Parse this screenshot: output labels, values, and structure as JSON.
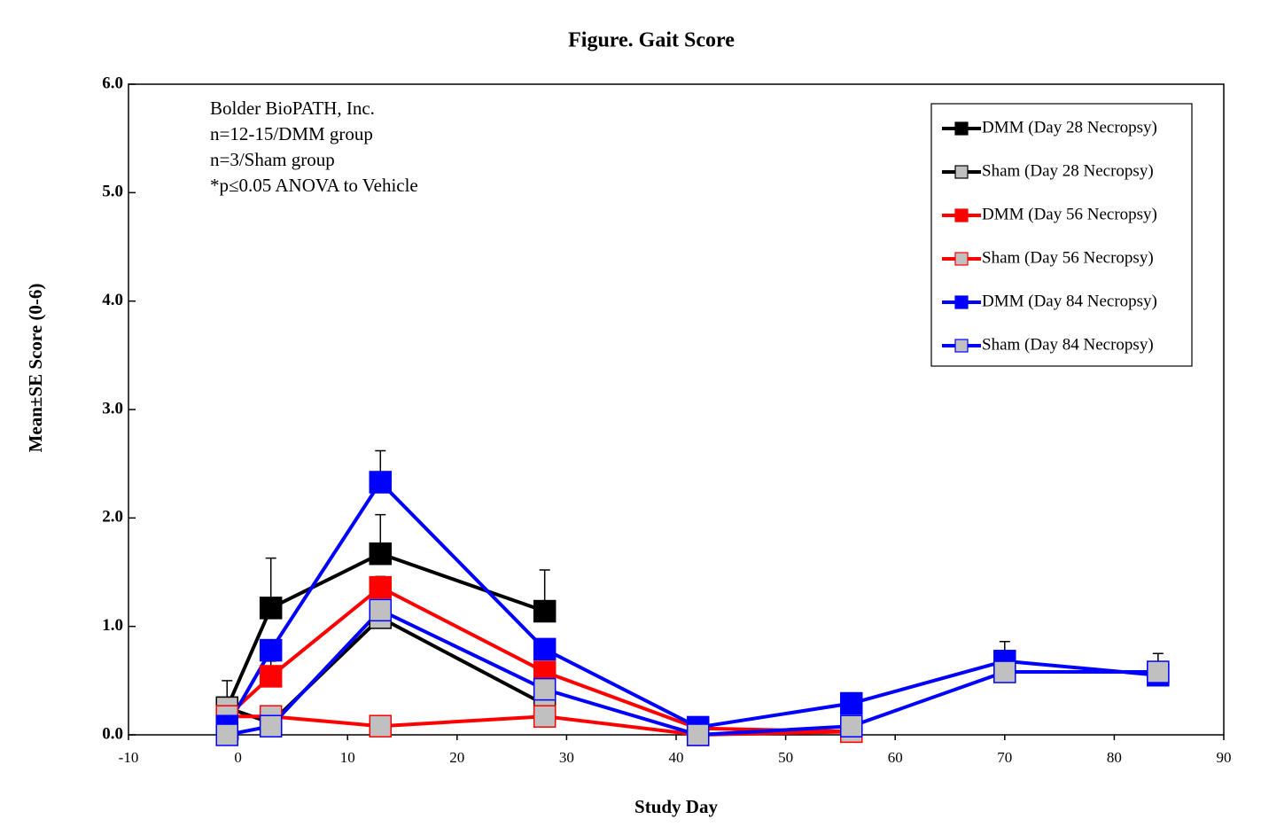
{
  "chart_data": {
    "type": "line",
    "title": "Figure. Gait Score",
    "x_label": "Study Day",
    "y_label": "Mean±SE Score (0-6)",
    "annotations": [
      "Bolder BioPATH, Inc.",
      "n=12-15/DMM group",
      "n=3/Sham group",
      "*p≤0.05 ANOVA to Vehicle"
    ],
    "xlim": [
      -10,
      90
    ],
    "xticks": [
      -10,
      0,
      10,
      20,
      30,
      40,
      50,
      60,
      70,
      80,
      90
    ],
    "ylim": [
      0,
      6
    ],
    "yticks": [
      {
        "value": 0,
        "label": "0.0"
      },
      {
        "value": 1,
        "label": "1.0"
      },
      {
        "value": 2,
        "label": "2.0"
      },
      {
        "value": 3,
        "label": "3.0"
      },
      {
        "value": 4,
        "label": "4.0"
      },
      {
        "value": 5,
        "label": "5.0"
      },
      {
        "value": 6,
        "label": "6.0"
      }
    ],
    "legend": "top-right",
    "series": [
      {
        "name": "DMM (Day 28 Necropsy)",
        "color": "#000000",
        "marker_color": "#000000",
        "x": [
          -1,
          3,
          13,
          28
        ],
        "values": [
          0.25,
          1.17,
          1.67,
          1.14
        ],
        "errors": [
          0.25,
          0.46,
          0.36,
          0.38
        ]
      },
      {
        "name": "Sham (Day 28 Necropsy)",
        "color": "#000000",
        "marker_color": "#c0c0c0",
        "x": [
          -1,
          3,
          13,
          28
        ],
        "values": [
          0.25,
          0.11,
          1.08,
          0.28
        ],
        "errors": [
          null,
          null,
          null,
          null
        ]
      },
      {
        "name": "DMM (Day 56 Necropsy)",
        "color": "#ff0000",
        "marker_color": "#ff0000",
        "x": [
          -1,
          3,
          13,
          28,
          42,
          56
        ],
        "values": [
          0.17,
          0.54,
          1.36,
          0.58,
          0.06,
          0.03
        ],
        "errors": [
          null,
          0.14,
          0.1,
          null,
          null,
          null
        ]
      },
      {
        "name": "Sham (Day 56 Necropsy)",
        "color": "#ff0000",
        "marker_color": "#c0c0c0",
        "x": [
          -1,
          3,
          13,
          28,
          42,
          56
        ],
        "values": [
          0.17,
          0.17,
          0.08,
          0.17,
          0,
          0.03
        ],
        "errors": [
          null,
          null,
          null,
          null,
          null,
          null
        ]
      },
      {
        "name": "DMM (Day 84 Necropsy)",
        "color": "#0000ff",
        "marker_color": "#0000ff",
        "x": [
          -1,
          3,
          13,
          28,
          42,
          56,
          70,
          84
        ],
        "values": [
          0.08,
          0.78,
          2.33,
          0.79,
          0.07,
          0.29,
          0.68,
          0.55
        ],
        "errors": [
          null,
          null,
          0.29,
          null,
          null,
          null,
          0.18,
          null
        ]
      },
      {
        "name": "Sham (Day 84 Necropsy)",
        "color": "#0000ff",
        "marker_color": "#c0c0c0",
        "x": [
          -1,
          3,
          13,
          28,
          42,
          56,
          70,
          84
        ],
        "values": [
          0,
          0.08,
          1.15,
          0.42,
          0,
          0.08,
          0.58,
          0.58
        ],
        "errors": [
          null,
          null,
          null,
          null,
          null,
          null,
          null,
          0.17
        ]
      }
    ]
  }
}
